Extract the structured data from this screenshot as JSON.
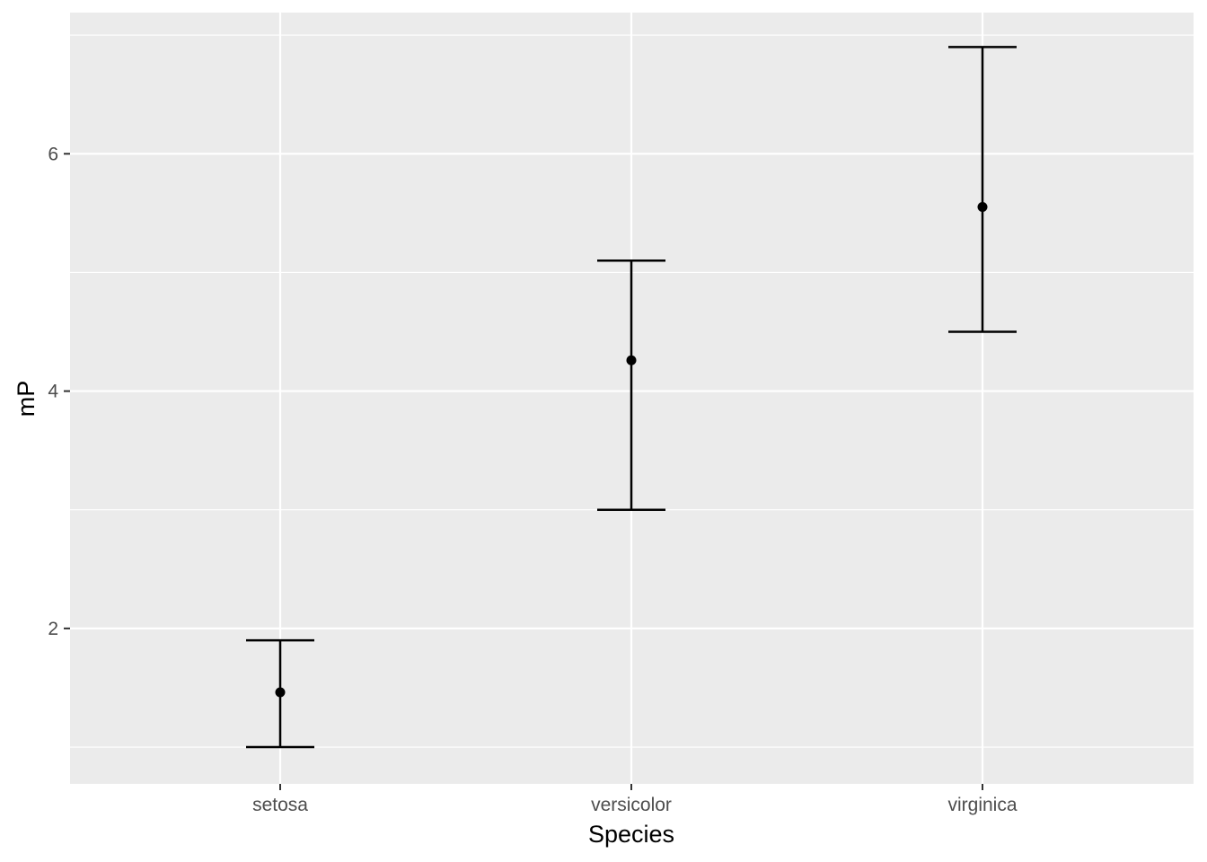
{
  "chart_data": {
    "type": "errorbar",
    "xlabel": "Species",
    "ylabel": "mP",
    "categories": [
      "setosa",
      "versicolor",
      "virginica"
    ],
    "series": [
      {
        "values": [
          1.462,
          4.26,
          5.552
        ],
        "lower": [
          1.0,
          3.0,
          4.5
        ],
        "upper": [
          1.9,
          5.1,
          6.9
        ]
      }
    ],
    "ylim": [
      0.69,
      7.19
    ],
    "y_ticks": [
      2,
      4,
      6
    ],
    "y_tick_labels": [
      "2",
      "4",
      "6"
    ],
    "y_minor_ticks": [
      1,
      3,
      5,
      7
    ],
    "grid": true,
    "legend": "none",
    "colors": {
      "panel_background": "#EBEBEB",
      "grid_major": "#FFFFFF",
      "grid_minor": "#FFFFFF",
      "tick_text": "#4D4D4D",
      "axis_tick": "#333333",
      "marks": "#000000"
    }
  }
}
